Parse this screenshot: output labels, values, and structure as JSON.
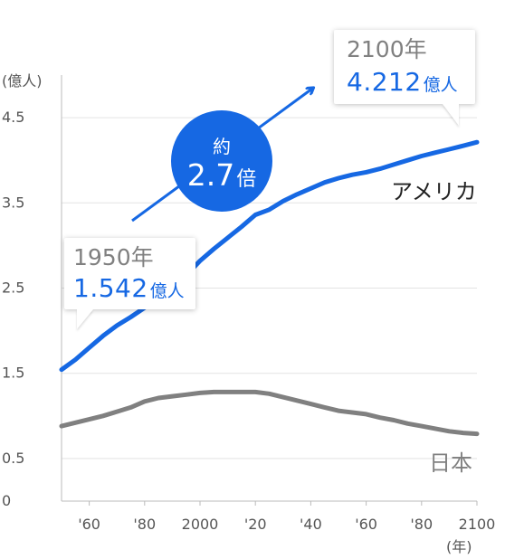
{
  "chart_data": {
    "type": "line",
    "ylabel": "(億人)",
    "xlabel": "(年)",
    "yticks": [
      {
        "value": 0,
        "label": "0"
      },
      {
        "value": 0.5,
        "label": "0.5"
      },
      {
        "value": 1.5,
        "label": "1.5"
      },
      {
        "value": 2.5,
        "label": "2.5"
      },
      {
        "value": 3.5,
        "label": "3.5"
      },
      {
        "value": 4.5,
        "label": "4.5"
      }
    ],
    "xticks": [
      {
        "value": 1960,
        "label": "'60"
      },
      {
        "value": 1980,
        "label": "'80"
      },
      {
        "value": 2000,
        "label": "2000"
      },
      {
        "value": 2020,
        "label": "'20"
      },
      {
        "value": 2040,
        "label": "'40"
      },
      {
        "value": 2060,
        "label": "'60"
      },
      {
        "value": 2080,
        "label": "'80"
      },
      {
        "value": 2100,
        "label": "2100"
      }
    ],
    "xlim": [
      1950,
      2100
    ],
    "ylim": [
      0,
      5.0
    ],
    "grid": "horizontal",
    "series": [
      {
        "name": "アメリカ",
        "color": "#1668e3",
        "x": [
          1950,
          1955,
          1960,
          1965,
          1970,
          1975,
          1980,
          1985,
          1990,
          1995,
          2000,
          2005,
          2010,
          2015,
          2020,
          2025,
          2030,
          2035,
          2040,
          2045,
          2050,
          2055,
          2060,
          2065,
          2070,
          2075,
          2080,
          2085,
          2090,
          2095,
          2100
        ],
        "values": [
          1.542,
          1.66,
          1.8,
          1.94,
          2.06,
          2.16,
          2.27,
          2.38,
          2.49,
          2.65,
          2.82,
          2.96,
          3.09,
          3.22,
          3.36,
          3.42,
          3.52,
          3.6,
          3.67,
          3.74,
          3.79,
          3.83,
          3.86,
          3.9,
          3.95,
          4.0,
          4.05,
          4.09,
          4.13,
          4.17,
          4.212
        ]
      },
      {
        "name": "日本",
        "color": "#808080",
        "x": [
          1950,
          1955,
          1960,
          1965,
          1970,
          1975,
          1980,
          1985,
          1990,
          1995,
          2000,
          2005,
          2010,
          2015,
          2020,
          2025,
          2030,
          2035,
          2040,
          2045,
          2050,
          2055,
          2060,
          2065,
          2070,
          2075,
          2080,
          2085,
          2090,
          2095,
          2100
        ],
        "values": [
          0.88,
          0.92,
          0.96,
          1.0,
          1.05,
          1.1,
          1.17,
          1.21,
          1.23,
          1.25,
          1.27,
          1.28,
          1.28,
          1.28,
          1.28,
          1.26,
          1.22,
          1.18,
          1.14,
          1.1,
          1.06,
          1.04,
          1.02,
          0.98,
          0.95,
          0.91,
          0.88,
          0.85,
          0.82,
          0.8,
          0.79
        ]
      }
    ],
    "annotations": {
      "start": {
        "year": "1950年",
        "value": "1.542",
        "unit": "億人"
      },
      "end": {
        "year": "2100年",
        "value": "4.212",
        "unit": "億人"
      },
      "growth": {
        "approx": "約",
        "multiple": "2.7",
        "unit": "倍"
      }
    }
  }
}
